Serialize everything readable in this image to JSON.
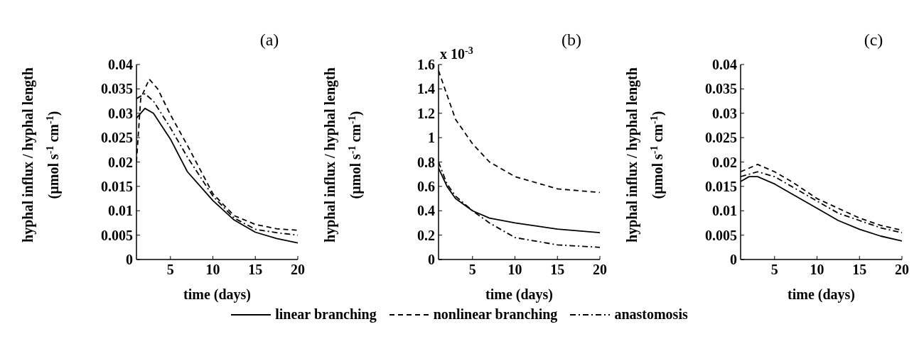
{
  "chart_data": [
    {
      "type": "line",
      "title": "(a)",
      "xlabel": "time (days)",
      "ylabel": "hyphal influx / hyphal length\n(µmol s$^{-1}$ cm$^{-1}$)",
      "xlim": [
        1,
        20
      ],
      "xticks": [
        5,
        10,
        15,
        20
      ],
      "ylim": [
        0,
        0.04
      ],
      "yticks": [
        0,
        0.005,
        0.01,
        0.015,
        0.02,
        0.025,
        0.03,
        0.035,
        0.04
      ],
      "legend": "bottom",
      "series": [
        {
          "name": "linear branching",
          "color": "#000000",
          "line_style": "solid",
          "x": [
            1,
            2,
            3,
            5,
            7,
            10,
            12.5,
            15,
            17.5,
            20
          ],
          "values": [
            0.029,
            0.031,
            0.03,
            0.0247,
            0.018,
            0.0121,
            0.0081,
            0.0056,
            0.0043,
            0.0034
          ]
        },
        {
          "name": "nonlinear branching",
          "color": "#000000",
          "line_style": "dashed",
          "x": [
            1,
            1.5,
            2.5,
            3.5,
            5,
            7,
            10,
            12.5,
            15,
            17.5,
            20
          ],
          "values": [
            0.02,
            0.033,
            0.037,
            0.035,
            0.0297,
            0.0234,
            0.0135,
            0.009,
            0.0072,
            0.0063,
            0.006
          ]
        },
        {
          "name": "anastomosis",
          "color": "#000000",
          "line_style": "dotted",
          "x": [
            1,
            2,
            3,
            5,
            7,
            10,
            12.5,
            15,
            17.5,
            20
          ],
          "values": [
            0.033,
            0.034,
            0.0325,
            0.027,
            0.021,
            0.013,
            0.0085,
            0.0062,
            0.0055,
            0.005
          ]
        }
      ]
    },
    {
      "type": "line",
      "title": "(b)",
      "xlabel": "time (days)",
      "ylabel": "hyphal influx / hyphal length\n(µmol s$^{-1}$ cm$^{-1}$)",
      "annotations": [
        "x 10$^{-3}$"
      ],
      "xlim": [
        1,
        20
      ],
      "xticks": [
        5,
        10,
        15,
        20
      ],
      "ylim": [
        0,
        1.6
      ],
      "yticks": [
        0,
        0.2,
        0.4,
        0.6,
        0.8,
        1,
        1.2,
        1.4,
        1.6
      ],
      "series": [
        {
          "color": "#000000",
          "line_style": "solid",
          "x": [
            1,
            2,
            3,
            5,
            7,
            10,
            15,
            20
          ],
          "values": [
            0.75,
            0.6,
            0.5,
            0.4,
            0.34,
            0.3,
            0.25,
            0.22
          ]
        },
        {
          "color": "#000000",
          "line_style": "dashed",
          "x": [
            1,
            2,
            3,
            5,
            7,
            10,
            15,
            20
          ],
          "values": [
            1.55,
            1.35,
            1.15,
            0.95,
            0.8,
            0.68,
            0.58,
            0.55
          ]
        },
        {
          "color": "#000000",
          "line_style": "dotted",
          "x": [
            1,
            2,
            3,
            5,
            7,
            10,
            15,
            20
          ],
          "values": [
            0.8,
            0.62,
            0.52,
            0.4,
            0.3,
            0.18,
            0.12,
            0.1
          ]
        }
      ]
    },
    {
      "type": "line",
      "title": "(c)",
      "xlabel": "time (days)",
      "ylabel": "hyphal influx / hyphal length\n(µmol s$^{-1}$ cm$^{-1}$)",
      "xlim": [
        1,
        20
      ],
      "xticks": [
        5,
        10,
        15,
        20
      ],
      "ylim": [
        0,
        0.04
      ],
      "yticks": [
        0,
        0.005,
        0.01,
        0.015,
        0.02,
        0.025,
        0.03,
        0.035,
        0.04
      ],
      "series": [
        {
          "color": "#000000",
          "line_style": "solid",
          "x": [
            1,
            2,
            3,
            5,
            7,
            10,
            12.5,
            15,
            17.5,
            20
          ],
          "values": [
            0.016,
            0.017,
            0.017,
            0.0155,
            0.0135,
            0.0105,
            0.008,
            0.0062,
            0.0048,
            0.0038
          ]
        },
        {
          "color": "#000000",
          "line_style": "dashed",
          "x": [
            1,
            3,
            5,
            7,
            10,
            12.5,
            15,
            17.5,
            20
          ],
          "values": [
            0.018,
            0.0195,
            0.018,
            0.016,
            0.0125,
            0.0105,
            0.0085,
            0.007,
            0.006
          ]
        },
        {
          "color": "#000000",
          "line_style": "dotted",
          "x": [
            1,
            3,
            5,
            7,
            10,
            12.5,
            15,
            17.5,
            20
          ],
          "values": [
            0.017,
            0.018,
            0.017,
            0.015,
            0.012,
            0.0095,
            0.008,
            0.0065,
            0.0055
          ]
        }
      ]
    }
  ]
}
